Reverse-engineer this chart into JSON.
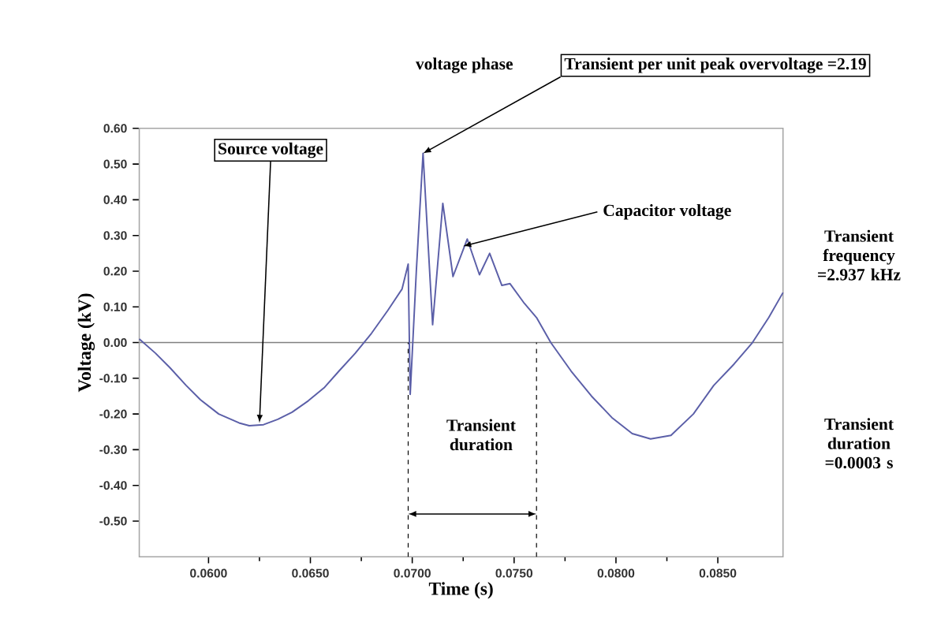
{
  "chart_data": {
    "type": "line",
    "xlabel": "Time (s)",
    "ylabel": "Voltage (kV)",
    "x": [
      0.0566,
      0.0574,
      0.0581,
      0.0589,
      0.0596,
      0.0605,
      0.0615,
      0.062,
      0.0627,
      0.0634,
      0.0641,
      0.0649,
      0.0657,
      0.0664,
      0.0672,
      0.068,
      0.0688,
      0.0695,
      0.0698,
      0.0699,
      0.0702,
      0.07053,
      0.071,
      0.0715,
      0.072,
      0.0727,
      0.0733,
      0.0738,
      0.0744,
      0.0748,
      0.0755,
      0.0761,
      0.0768,
      0.0778,
      0.0788,
      0.0798,
      0.0808,
      0.0817,
      0.0827,
      0.0838,
      0.0848,
      0.0858,
      0.0867,
      0.0875,
      0.0882
    ],
    "series": [
      {
        "color": "#5b5fa8",
        "values": [
          0.01,
          -0.03,
          -0.07,
          -0.12,
          -0.16,
          -0.2,
          -0.225,
          -0.233,
          -0.23,
          -0.215,
          -0.195,
          -0.163,
          -0.125,
          -0.08,
          -0.03,
          0.026,
          0.09,
          0.15,
          0.22,
          -0.145,
          0.2,
          0.53,
          0.05,
          0.39,
          0.185,
          0.29,
          0.19,
          0.25,
          0.16,
          0.165,
          0.11,
          0.07,
          0.0,
          -0.08,
          -0.15,
          -0.21,
          -0.255,
          -0.27,
          -0.26,
          -0.2,
          -0.12,
          -0.06,
          0.0,
          0.07,
          0.14
        ]
      }
    ],
    "xlim": [
      0.0566,
      0.0882
    ],
    "ylim": [
      -0.6,
      0.6
    ],
    "xticks": [
      {
        "value": 0.06,
        "label": "0.0600"
      },
      {
        "value": 0.065,
        "label": "0.0650"
      },
      {
        "value": 0.07,
        "label": "0.0700"
      },
      {
        "value": 0.075,
        "label": "0.0750"
      },
      {
        "value": 0.08,
        "label": "0.0800"
      },
      {
        "value": 0.085,
        "label": "0.0850"
      }
    ],
    "yticks": [
      {
        "value": -0.5,
        "label": "-0.50"
      },
      {
        "value": -0.4,
        "label": "-0.40"
      },
      {
        "value": -0.3,
        "label": "-0.30"
      },
      {
        "value": -0.2,
        "label": "-0.20"
      },
      {
        "value": -0.1,
        "label": "-0.10"
      },
      {
        "value": 0,
        "label": "0.00"
      },
      {
        "value": 0.1,
        "label": "0.10"
      },
      {
        "value": 0.2,
        "label": "0.20"
      },
      {
        "value": 0.3,
        "label": "0.30"
      },
      {
        "value": 0.4,
        "label": "0.40"
      },
      {
        "value": 0.5,
        "label": "0.50"
      },
      {
        "value": 0.6,
        "label": "0.60"
      }
    ],
    "ref_lines": [
      {
        "axis": "y",
        "value": 0,
        "color": "#808080",
        "line_style": "solid"
      },
      {
        "axis": "x",
        "value": 0.0698,
        "color": "#000000",
        "line_style": "dashed"
      },
      {
        "axis": "x",
        "value": 0.0761,
        "color": "#000000",
        "line_style": "dashed"
      }
    ],
    "annotations": [
      "voltage phase",
      {
        "text": "Transient per unit  peak overvoltage =2.19",
        "x": 0.07053,
        "y": 0.53
      },
      {
        "text": "Source voltage",
        "x": 0.0625,
        "y": -0.225
      },
      {
        "text": "Capacitor voltage",
        "x": 0.0725,
        "y": 0.27
      },
      "Transient duration",
      "Transient frequency =2.937 kHz",
      "Transient duration =0.0003 s"
    ],
    "grid": false
  }
}
